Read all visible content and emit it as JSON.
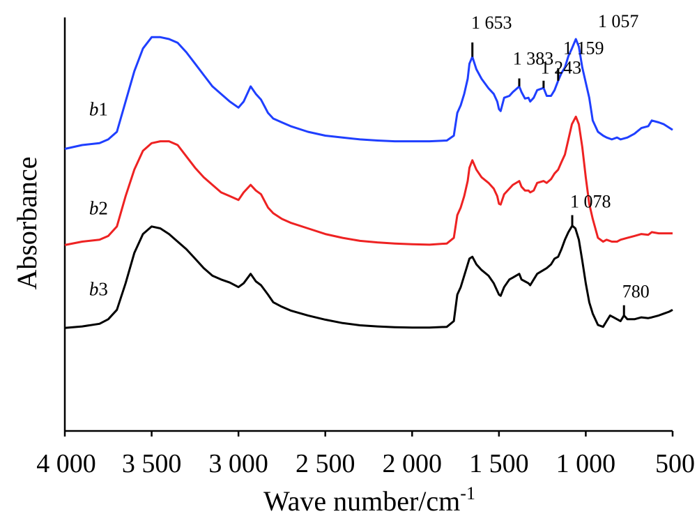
{
  "chart_data": {
    "type": "line",
    "xlabel": "Wave number/cm",
    "xlabel_sup": "-1",
    "ylabel": "Absorbance",
    "xlim": [
      4000,
      500
    ],
    "x_reversed": true,
    "x_ticks": [
      {
        "value": 4000,
        "label": "4 000"
      },
      {
        "value": 3500,
        "label": "3 500"
      },
      {
        "value": 3000,
        "label": "3 000"
      },
      {
        "value": 2500,
        "label": "2 500"
      },
      {
        "value": 2000,
        "label": "2 000"
      },
      {
        "value": 1500,
        "label": "1 500"
      },
      {
        "value": 1000,
        "label": "1 000"
      },
      {
        "value": 500,
        "label": "500"
      }
    ],
    "y_units": "arbitrary (curves vertically offset, no tick labels)",
    "ylim": [
      0,
      1
    ],
    "grid": false,
    "series": [
      {
        "id": "b1",
        "label_italic": "b",
        "label_rest": "1",
        "label_at": [
          3860,
          0.763
        ],
        "color": "#1f3fff",
        "points": [
          [
            4000,
            0.675
          ],
          [
            3900,
            0.685
          ],
          [
            3800,
            0.69
          ],
          [
            3750,
            0.7
          ],
          [
            3700,
            0.72
          ],
          [
            3650,
            0.8
          ],
          [
            3600,
            0.88
          ],
          [
            3550,
            0.94
          ],
          [
            3500,
            0.97
          ],
          [
            3450,
            0.97
          ],
          [
            3400,
            0.965
          ],
          [
            3350,
            0.955
          ],
          [
            3300,
            0.93
          ],
          [
            3250,
            0.9
          ],
          [
            3200,
            0.87
          ],
          [
            3150,
            0.84
          ],
          [
            3100,
            0.82
          ],
          [
            3050,
            0.8
          ],
          [
            3000,
            0.784
          ],
          [
            2970,
            0.8
          ],
          [
            2930,
            0.84
          ],
          [
            2900,
            0.82
          ],
          [
            2870,
            0.805
          ],
          [
            2830,
            0.77
          ],
          [
            2800,
            0.755
          ],
          [
            2750,
            0.745
          ],
          [
            2700,
            0.735
          ],
          [
            2600,
            0.72
          ],
          [
            2500,
            0.71
          ],
          [
            2400,
            0.705
          ],
          [
            2300,
            0.7
          ],
          [
            2200,
            0.697
          ],
          [
            2100,
            0.695
          ],
          [
            2000,
            0.695
          ],
          [
            1900,
            0.695
          ],
          [
            1800,
            0.697
          ],
          [
            1760,
            0.71
          ],
          [
            1740,
            0.77
          ],
          [
            1720,
            0.79
          ],
          [
            1700,
            0.82
          ],
          [
            1680,
            0.86
          ],
          [
            1670,
            0.9
          ],
          [
            1653,
            0.918
          ],
          [
            1630,
            0.885
          ],
          [
            1600,
            0.86
          ],
          [
            1560,
            0.835
          ],
          [
            1530,
            0.82
          ],
          [
            1510,
            0.8
          ],
          [
            1500,
            0.78
          ],
          [
            1490,
            0.775
          ],
          [
            1470,
            0.81
          ],
          [
            1440,
            0.815
          ],
          [
            1420,
            0.825
          ],
          [
            1383,
            0.84
          ],
          [
            1370,
            0.825
          ],
          [
            1350,
            0.808
          ],
          [
            1330,
            0.81
          ],
          [
            1320,
            0.8
          ],
          [
            1300,
            0.81
          ],
          [
            1280,
            0.83
          ],
          [
            1243,
            0.836
          ],
          [
            1225,
            0.815
          ],
          [
            1200,
            0.815
          ],
          [
            1180,
            0.83
          ],
          [
            1159,
            0.855
          ],
          [
            1140,
            0.875
          ],
          [
            1120,
            0.89
          ],
          [
            1100,
            0.92
          ],
          [
            1080,
            0.94
          ],
          [
            1057,
            0.965
          ],
          [
            1040,
            0.945
          ],
          [
            1020,
            0.89
          ],
          [
            1000,
            0.85
          ],
          [
            980,
            0.81
          ],
          [
            960,
            0.75
          ],
          [
            930,
            0.72
          ],
          [
            900,
            0.71
          ],
          [
            880,
            0.705
          ],
          [
            850,
            0.7
          ],
          [
            820,
            0.705
          ],
          [
            800,
            0.7
          ],
          [
            760,
            0.705
          ],
          [
            720,
            0.715
          ],
          [
            680,
            0.73
          ],
          [
            640,
            0.735
          ],
          [
            620,
            0.75
          ],
          [
            580,
            0.745
          ],
          [
            550,
            0.74
          ],
          [
            500,
            0.725
          ]
        ]
      },
      {
        "id": "b2",
        "label_italic": "b",
        "label_rest": "2",
        "label_at": [
          3860,
          0.502
        ],
        "color": "#ee2222",
        "points": [
          [
            4000,
            0.421
          ],
          [
            3900,
            0.43
          ],
          [
            3800,
            0.435
          ],
          [
            3750,
            0.445
          ],
          [
            3700,
            0.47
          ],
          [
            3650,
            0.55
          ],
          [
            3600,
            0.62
          ],
          [
            3550,
            0.67
          ],
          [
            3500,
            0.69
          ],
          [
            3450,
            0.695
          ],
          [
            3400,
            0.695
          ],
          [
            3350,
            0.685
          ],
          [
            3300,
            0.655
          ],
          [
            3250,
            0.625
          ],
          [
            3200,
            0.6
          ],
          [
            3150,
            0.58
          ],
          [
            3100,
            0.56
          ],
          [
            3050,
            0.55
          ],
          [
            3000,
            0.54
          ],
          [
            2970,
            0.56
          ],
          [
            2930,
            0.58
          ],
          [
            2900,
            0.565
          ],
          [
            2870,
            0.555
          ],
          [
            2830,
            0.52
          ],
          [
            2800,
            0.505
          ],
          [
            2750,
            0.49
          ],
          [
            2700,
            0.48
          ],
          [
            2600,
            0.465
          ],
          [
            2500,
            0.45
          ],
          [
            2400,
            0.44
          ],
          [
            2300,
            0.432
          ],
          [
            2200,
            0.428
          ],
          [
            2100,
            0.425
          ],
          [
            2000,
            0.423
          ],
          [
            1900,
            0.422
          ],
          [
            1800,
            0.425
          ],
          [
            1760,
            0.44
          ],
          [
            1740,
            0.5
          ],
          [
            1720,
            0.52
          ],
          [
            1700,
            0.55
          ],
          [
            1680,
            0.59
          ],
          [
            1670,
            0.625
          ],
          [
            1653,
            0.645
          ],
          [
            1630,
            0.62
          ],
          [
            1600,
            0.6
          ],
          [
            1560,
            0.585
          ],
          [
            1530,
            0.57
          ],
          [
            1510,
            0.55
          ],
          [
            1500,
            0.53
          ],
          [
            1490,
            0.528
          ],
          [
            1470,
            0.555
          ],
          [
            1440,
            0.57
          ],
          [
            1420,
            0.58
          ],
          [
            1383,
            0.59
          ],
          [
            1370,
            0.575
          ],
          [
            1350,
            0.565
          ],
          [
            1330,
            0.565
          ],
          [
            1320,
            0.56
          ],
          [
            1300,
            0.565
          ],
          [
            1280,
            0.585
          ],
          [
            1243,
            0.59
          ],
          [
            1225,
            0.585
          ],
          [
            1200,
            0.595
          ],
          [
            1180,
            0.61
          ],
          [
            1159,
            0.62
          ],
          [
            1140,
            0.64
          ],
          [
            1120,
            0.66
          ],
          [
            1100,
            0.7
          ],
          [
            1080,
            0.74
          ],
          [
            1057,
            0.76
          ],
          [
            1040,
            0.74
          ],
          [
            1020,
            0.68
          ],
          [
            1000,
            0.6
          ],
          [
            980,
            0.53
          ],
          [
            960,
            0.49
          ],
          [
            930,
            0.44
          ],
          [
            900,
            0.43
          ],
          [
            880,
            0.435
          ],
          [
            850,
            0.43
          ],
          [
            820,
            0.43
          ],
          [
            800,
            0.435
          ],
          [
            760,
            0.44
          ],
          [
            720,
            0.445
          ],
          [
            680,
            0.45
          ],
          [
            640,
            0.448
          ],
          [
            620,
            0.455
          ],
          [
            580,
            0.452
          ],
          [
            550,
            0.452
          ],
          [
            500,
            0.452
          ]
        ]
      },
      {
        "id": "b3",
        "label_italic": "b",
        "label_rest": "3",
        "label_at": [
          3860,
          0.288
        ],
        "color": "#000000",
        "points": [
          [
            4000,
            0.202
          ],
          [
            3900,
            0.206
          ],
          [
            3800,
            0.213
          ],
          [
            3750,
            0.225
          ],
          [
            3700,
            0.25
          ],
          [
            3650,
            0.32
          ],
          [
            3600,
            0.4
          ],
          [
            3550,
            0.45
          ],
          [
            3500,
            0.47
          ],
          [
            3450,
            0.465
          ],
          [
            3400,
            0.45
          ],
          [
            3350,
            0.43
          ],
          [
            3300,
            0.41
          ],
          [
            3250,
            0.385
          ],
          [
            3200,
            0.36
          ],
          [
            3150,
            0.34
          ],
          [
            3100,
            0.33
          ],
          [
            3050,
            0.322
          ],
          [
            3000,
            0.31
          ],
          [
            2970,
            0.32
          ],
          [
            2930,
            0.345
          ],
          [
            2900,
            0.325
          ],
          [
            2870,
            0.315
          ],
          [
            2830,
            0.29
          ],
          [
            2800,
            0.27
          ],
          [
            2750,
            0.258
          ],
          [
            2700,
            0.248
          ],
          [
            2600,
            0.235
          ],
          [
            2500,
            0.224
          ],
          [
            2400,
            0.215
          ],
          [
            2300,
            0.209
          ],
          [
            2200,
            0.206
          ],
          [
            2100,
            0.204
          ],
          [
            2000,
            0.203
          ],
          [
            1900,
            0.203
          ],
          [
            1800,
            0.205
          ],
          [
            1760,
            0.22
          ],
          [
            1740,
            0.29
          ],
          [
            1720,
            0.31
          ],
          [
            1700,
            0.34
          ],
          [
            1680,
            0.37
          ],
          [
            1670,
            0.385
          ],
          [
            1653,
            0.39
          ],
          [
            1630,
            0.37
          ],
          [
            1600,
            0.355
          ],
          [
            1560,
            0.34
          ],
          [
            1530,
            0.32
          ],
          [
            1510,
            0.3
          ],
          [
            1500,
            0.29
          ],
          [
            1490,
            0.287
          ],
          [
            1470,
            0.31
          ],
          [
            1440,
            0.33
          ],
          [
            1420,
            0.335
          ],
          [
            1383,
            0.345
          ],
          [
            1370,
            0.33
          ],
          [
            1350,
            0.325
          ],
          [
            1330,
            0.32
          ],
          [
            1320,
            0.315
          ],
          [
            1300,
            0.33
          ],
          [
            1280,
            0.345
          ],
          [
            1243,
            0.355
          ],
          [
            1225,
            0.36
          ],
          [
            1200,
            0.37
          ],
          [
            1180,
            0.385
          ],
          [
            1159,
            0.39
          ],
          [
            1140,
            0.41
          ],
          [
            1120,
            0.435
          ],
          [
            1100,
            0.455
          ],
          [
            1078,
            0.472
          ],
          [
            1060,
            0.465
          ],
          [
            1040,
            0.435
          ],
          [
            1020,
            0.38
          ],
          [
            1000,
            0.32
          ],
          [
            980,
            0.27
          ],
          [
            960,
            0.24
          ],
          [
            930,
            0.21
          ],
          [
            900,
            0.205
          ],
          [
            880,
            0.22
          ],
          [
            860,
            0.235
          ],
          [
            840,
            0.23
          ],
          [
            820,
            0.225
          ],
          [
            800,
            0.22
          ],
          [
            780,
            0.235
          ],
          [
            760,
            0.225
          ],
          [
            720,
            0.225
          ],
          [
            680,
            0.23
          ],
          [
            640,
            0.228
          ],
          [
            620,
            0.23
          ],
          [
            580,
            0.235
          ],
          [
            550,
            0.24
          ],
          [
            520,
            0.245
          ],
          [
            500,
            0.25
          ]
        ]
      }
    ],
    "annotations": [
      {
        "text": "1 653",
        "x": 1653,
        "series": "b1",
        "tick_top": 0.956,
        "tick_bottom": 0.918,
        "label_x": 1660,
        "label_y": 0.993
      },
      {
        "text": "1 383",
        "x": 1383,
        "series": "b1",
        "tick_top": 0.861,
        "tick_bottom": 0.84,
        "label_x": 1420,
        "label_y": 0.898
      },
      {
        "text": "1 243",
        "x": 1243,
        "series": "b1",
        "tick_top": 0.855,
        "tick_bottom": 0.836,
        "label_x": 1260,
        "label_y": 0.874
      },
      {
        "text": "1 159",
        "x": 1159,
        "series": "b1",
        "tick_top": 0.888,
        "tick_bottom": 0.855,
        "label_x": 1130,
        "label_y": 0.925
      },
      {
        "text": "1 057",
        "x": 1057,
        "series": "b1",
        "tick_top": null,
        "tick_bottom": null,
        "label_x": 930,
        "label_y": 0.996
      },
      {
        "text": "1 078",
        "x": 1078,
        "series": "b3",
        "tick_top": 0.5,
        "tick_bottom": 0.472,
        "label_x": 1090,
        "label_y": 0.52
      },
      {
        "text": "780",
        "x": 780,
        "series": "b3",
        "tick_top": 0.262,
        "tick_bottom": 0.235,
        "label_x": 790,
        "label_y": 0.283
      }
    ]
  }
}
